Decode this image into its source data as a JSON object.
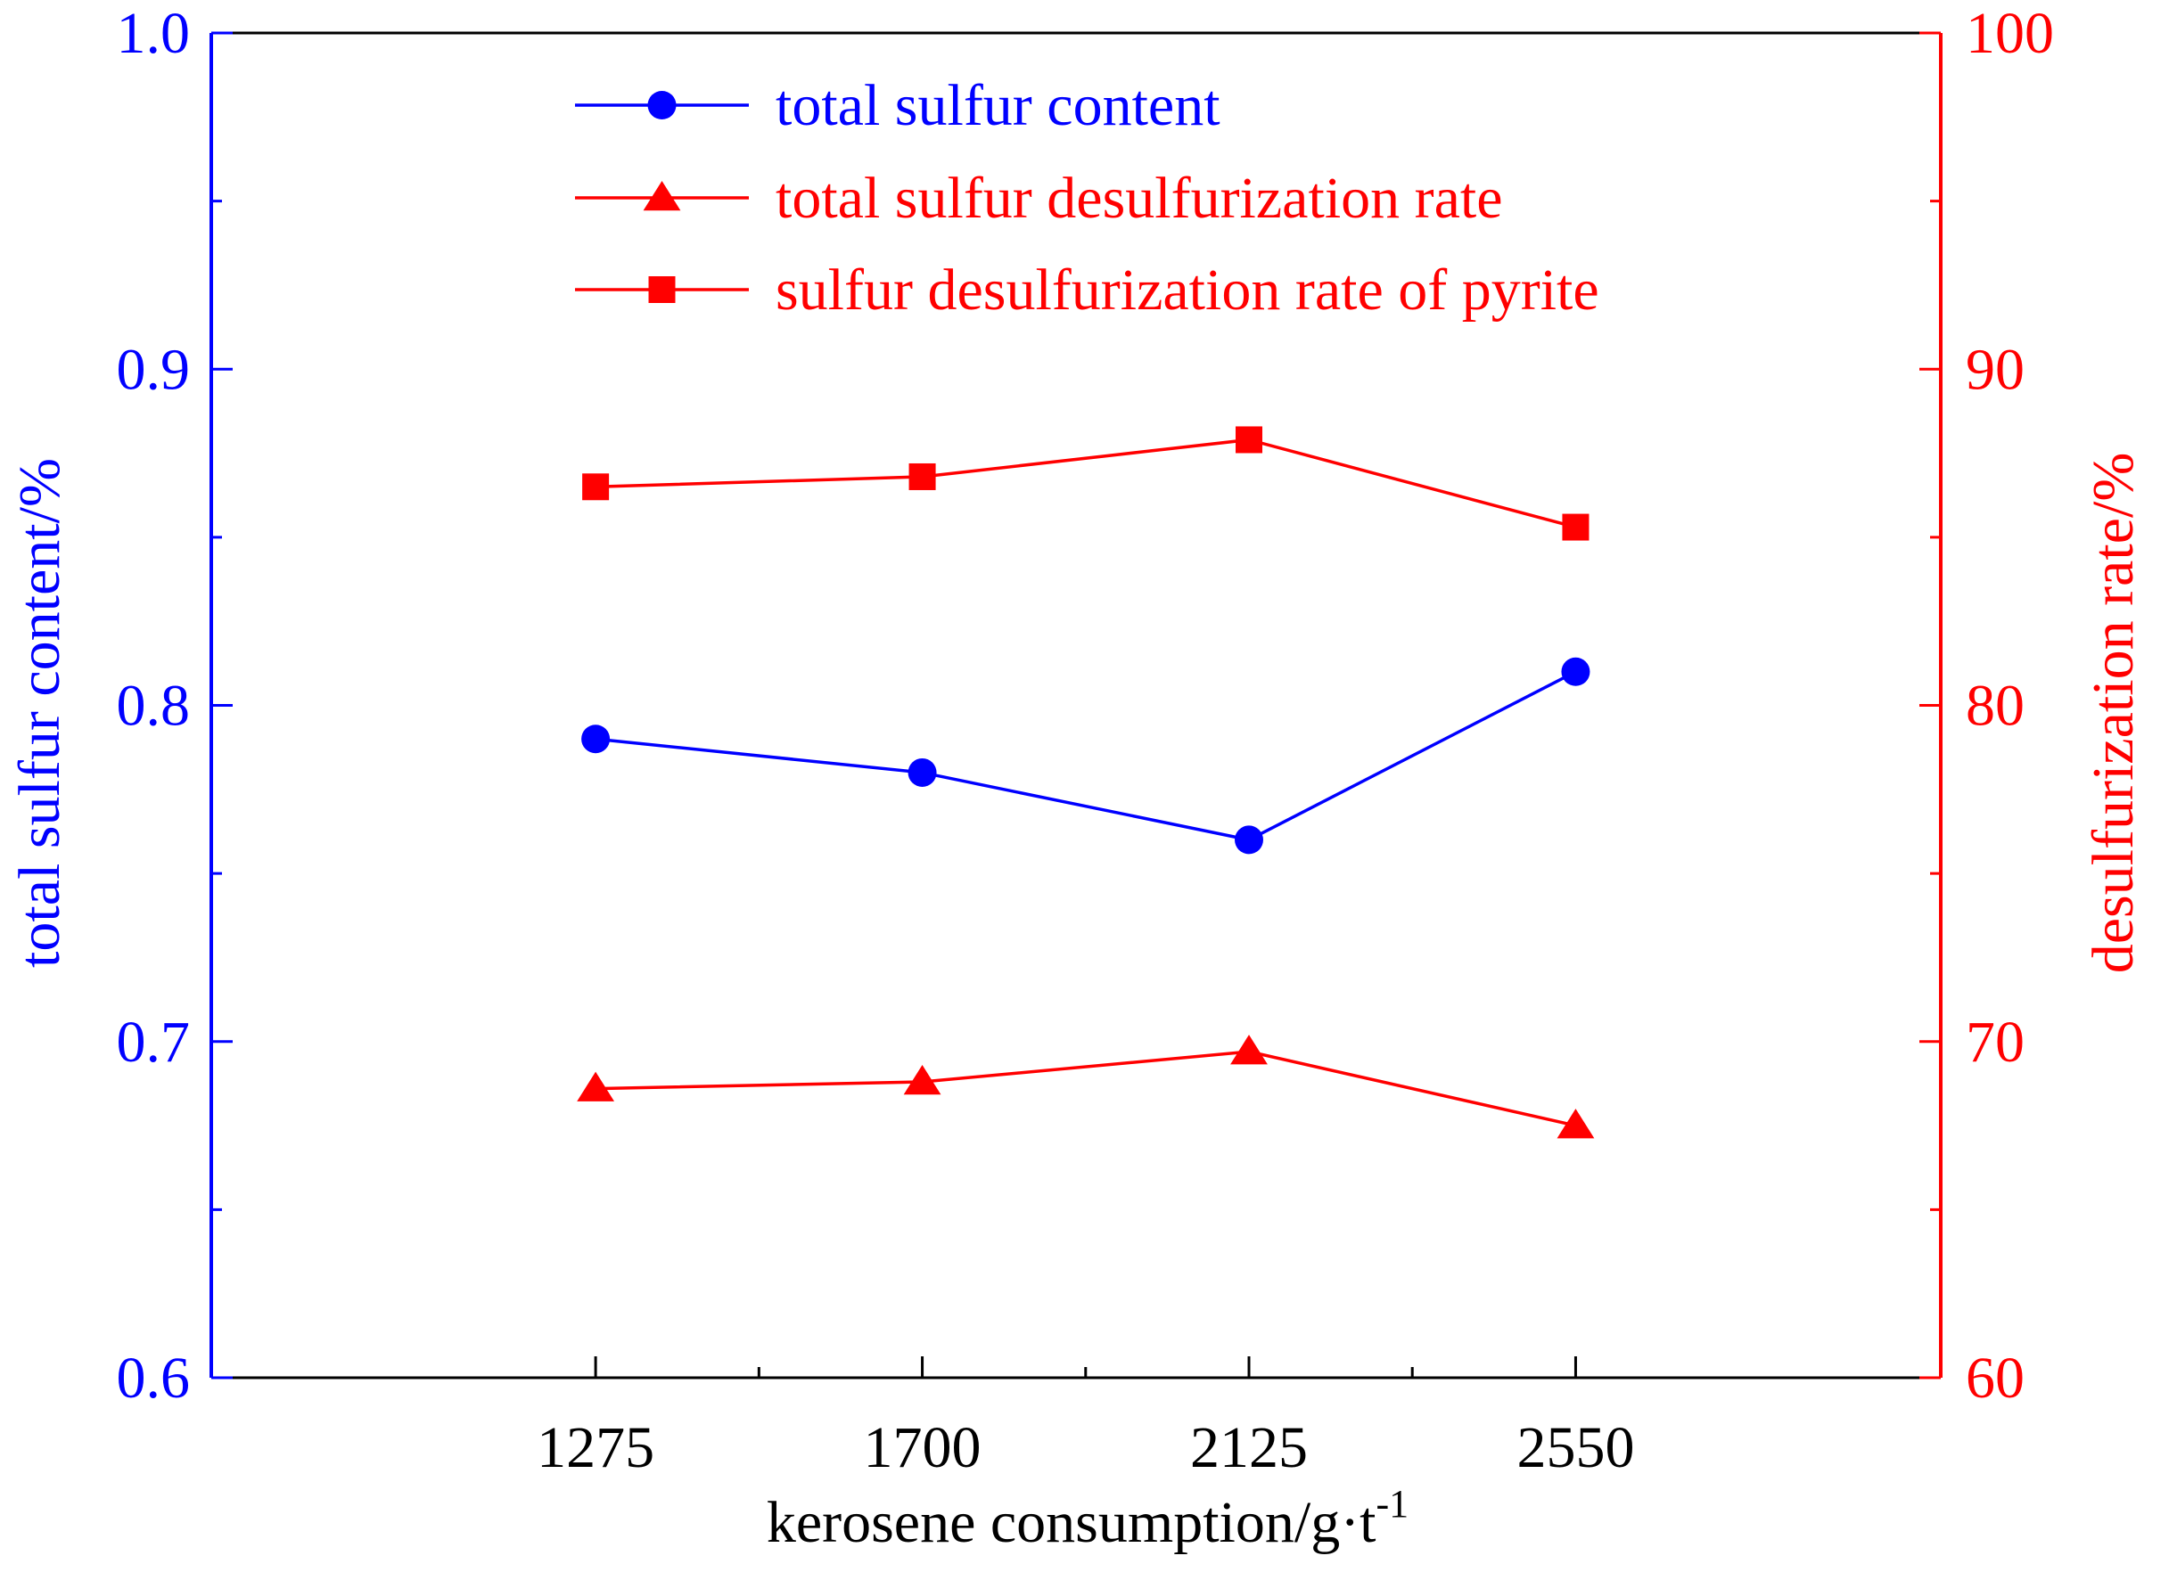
{
  "chart_data": {
    "type": "line",
    "title": "",
    "xlabel": "kerosene consumption/g·t",
    "xlabel_superscript": "-1",
    "categories": [
      "1275",
      "1700",
      "2125",
      "2550"
    ],
    "x": [
      1275,
      1700,
      2125,
      2550
    ],
    "left_axis": {
      "label": "total sulfur content/%",
      "ylim": [
        0.6,
        1.0
      ],
      "major_ticks": [
        0.6,
        0.7,
        0.8,
        0.9,
        1.0
      ],
      "tick_labels": [
        "0.6",
        "0.7",
        "0.8",
        "0.9",
        "1.0"
      ],
      "color": "#0000ff"
    },
    "right_axis": {
      "label": "desulfurization rate/%",
      "ylim": [
        60,
        100
      ],
      "major_ticks": [
        60,
        70,
        80,
        90,
        100
      ],
      "tick_labels": [
        "60",
        "70",
        "80",
        "90",
        "100"
      ],
      "color": "#ff0000"
    },
    "series": [
      {
        "name": "total sulfur content",
        "axis": "left",
        "marker": "circle",
        "color": "#0000ff",
        "values": [
          0.79,
          0.78,
          0.76,
          0.81
        ]
      },
      {
        "name": "total sulfur desulfurization rate",
        "axis": "right",
        "marker": "triangle",
        "color": "#ff0000",
        "values": [
          68.6,
          68.8,
          69.7,
          67.5
        ]
      },
      {
        "name": "sulfur desulfurization rate of pyrite",
        "axis": "right",
        "marker": "square",
        "color": "#ff0000",
        "values": [
          86.5,
          86.8,
          87.9,
          85.3
        ]
      }
    ],
    "legend": {
      "position": "top-center"
    },
    "grid": false
  }
}
